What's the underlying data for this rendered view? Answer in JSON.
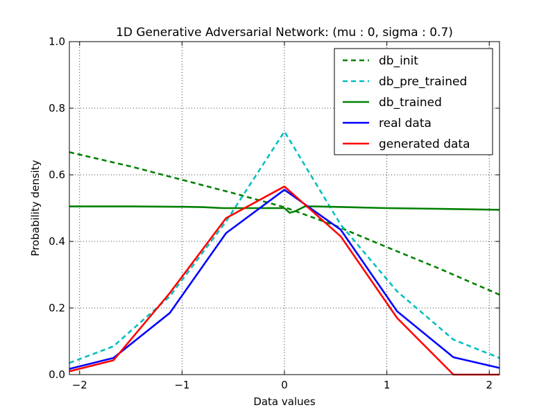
{
  "chart_data": {
    "type": "line",
    "title": "1D Generative Adversarial Network: (mu :   0, sigma : 0.7)",
    "xlabel": "Data values",
    "ylabel": "Probability density",
    "xlim": [
      -2.1,
      2.1
    ],
    "ylim": [
      0.0,
      1.0
    ],
    "grid": true,
    "legend_position": "top-right",
    "xticks": [
      -2,
      -1,
      0,
      1,
      2
    ],
    "xtick_labels": [
      "−2",
      "−1",
      "0",
      "1",
      "2"
    ],
    "yticks": [
      0.0,
      0.2,
      0.4,
      0.6,
      0.8,
      1.0
    ],
    "ytick_labels": [
      "0.0",
      "0.2",
      "0.4",
      "0.6",
      "0.8",
      "1.0"
    ],
    "series": [
      {
        "name": "db_init",
        "color": "#008000",
        "style": "dashed",
        "x": [
          -2.1,
          -1.5,
          -1.0,
          -0.5,
          0.0,
          0.5,
          1.0,
          1.5,
          2.1
        ],
        "y": [
          0.668,
          0.625,
          0.585,
          0.545,
          0.503,
          0.447,
          0.383,
          0.32,
          0.24
        ]
      },
      {
        "name": "db_pre_trained",
        "color": "#00bfbf",
        "style": "dashed",
        "x": [
          -2.1,
          -1.67,
          -1.12,
          -0.57,
          0.0,
          0.55,
          1.1,
          1.65,
          2.1
        ],
        "y": [
          0.035,
          0.085,
          0.235,
          0.46,
          0.73,
          0.45,
          0.25,
          0.105,
          0.05
        ]
      },
      {
        "name": "db_trained",
        "color": "#008000",
        "style": "solid",
        "x": [
          -2.1,
          -1.5,
          -1.0,
          -0.8,
          -0.6,
          -0.3,
          0.0,
          0.05,
          0.1,
          0.2,
          0.3,
          0.6,
          1.0,
          1.5,
          2.1
        ],
        "y": [
          0.505,
          0.505,
          0.504,
          0.503,
          0.5,
          0.5,
          0.5,
          0.486,
          0.49,
          0.505,
          0.505,
          0.503,
          0.5,
          0.498,
          0.495
        ]
      },
      {
        "name": "real data",
        "color": "#0000ff",
        "style": "solid",
        "x": [
          -2.1,
          -1.67,
          -1.12,
          -0.57,
          0.0,
          0.55,
          1.1,
          1.65,
          2.1
        ],
        "y": [
          0.017,
          0.05,
          0.185,
          0.425,
          0.555,
          0.435,
          0.19,
          0.052,
          0.02
        ]
      },
      {
        "name": "generated data",
        "color": "#ff0000",
        "style": "solid",
        "x": [
          -2.1,
          -1.67,
          -1.12,
          -0.57,
          0.0,
          0.55,
          1.1,
          1.65,
          2.1
        ],
        "y": [
          0.01,
          0.043,
          0.245,
          0.47,
          0.565,
          0.415,
          0.17,
          0.0,
          0.0
        ]
      }
    ]
  }
}
